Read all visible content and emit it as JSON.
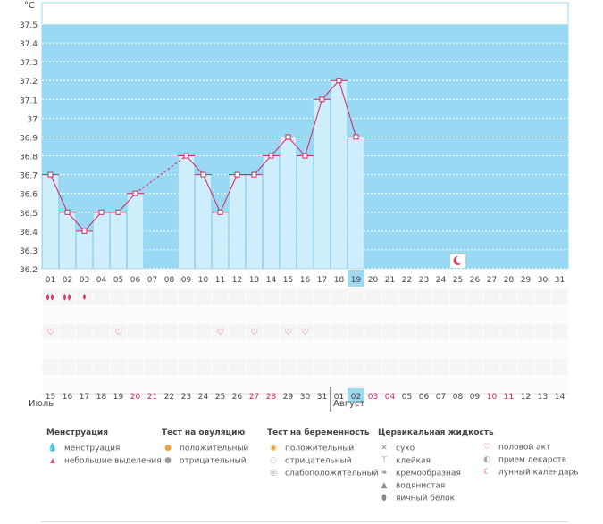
{
  "chart_data": {
    "type": "bar",
    "title": "",
    "ylabel": "°C",
    "ylim": [
      36.2,
      37.6
    ],
    "yticks": [
      "37.5",
      "37.4",
      "37.3",
      "37.2",
      "37.1",
      "37",
      "36.9",
      "36.8",
      "36.7",
      "36.6",
      "36.5",
      "36.4",
      "36.3",
      "36.2"
    ],
    "cycle_days": [
      "01",
      "02",
      "03",
      "04",
      "05",
      "06",
      "07",
      "08",
      "09",
      "10",
      "11",
      "12",
      "13",
      "14",
      "15",
      "16",
      "17",
      "18",
      "19",
      "20",
      "21",
      "22",
      "23",
      "24",
      "25",
      "26",
      "27",
      "28",
      "29",
      "30",
      "31"
    ],
    "current_day": "19",
    "dates": [
      "15",
      "16",
      "17",
      "18",
      "19",
      "20",
      "21",
      "22",
      "23",
      "24",
      "25",
      "26",
      "27",
      "28",
      "29",
      "30",
      "31",
      "01",
      "02",
      "03",
      "04",
      "05",
      "06",
      "07",
      "08",
      "09",
      "10",
      "11",
      "12",
      "13",
      "14"
    ],
    "weekend_dates_idx": [
      5,
      6,
      12,
      13,
      19,
      20,
      26,
      27
    ],
    "current_date_idx": 18,
    "months": [
      "Июль",
      "Август"
    ],
    "temperatures": [
      36.7,
      36.5,
      36.4,
      36.5,
      36.5,
      36.6,
      null,
      null,
      36.8,
      36.7,
      36.5,
      36.7,
      36.7,
      36.8,
      36.9,
      36.8,
      37.1,
      37.2,
      36.9,
      null,
      null,
      null,
      null,
      null,
      null,
      null,
      null,
      null,
      null,
      null,
      null
    ],
    "menstruation_days": [
      0,
      1
    ],
    "spotting_days": [
      2
    ],
    "intercourse_days": [
      0,
      4,
      10,
      12,
      14,
      15
    ],
    "moon_day": 24
  },
  "legend": {
    "menstruation": {
      "title": "Менструация",
      "items": [
        "менструация",
        "небольшие выделения"
      ]
    },
    "ovulation": {
      "title": "Тест на овуляцию",
      "items": [
        "положительный",
        "отрицательный"
      ]
    },
    "pregnancy": {
      "title": "Тест на беременность",
      "items": [
        "положительный",
        "отрицательный",
        "слабоположительный"
      ]
    },
    "cervical": {
      "title": "Цервикальная жидкость",
      "items": [
        "сухо",
        "клейкая",
        "кремообразная",
        "водянистая",
        "яичный белок"
      ]
    },
    "other": {
      "items": [
        "половой акт",
        "прием лекарств",
        "лунный календарь"
      ]
    }
  },
  "colors": {
    "band": "#99d9f3",
    "bar": "#cfeefc",
    "bar_stroke": "#8dcde9",
    "line": "#d4245e",
    "weekend": "#d4245e",
    "highlight": "#9fd8f0"
  }
}
